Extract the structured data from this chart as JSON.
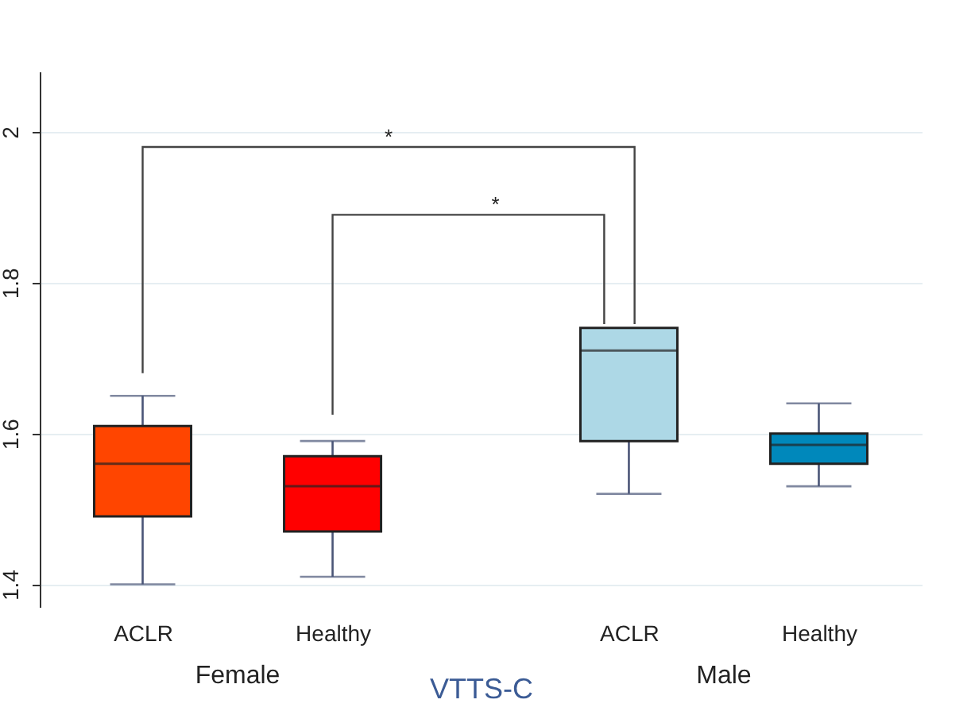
{
  "chart_data": {
    "type": "box",
    "xlabel": "VTTS-C",
    "categories": [
      "ACLR",
      "Healthy",
      "ACLR",
      "Healthy"
    ],
    "boxes": [
      {
        "low": 1.4,
        "q1": 1.49,
        "median": 1.56,
        "q3": 1.61,
        "high": 1.65
      },
      {
        "low": 1.41,
        "q1": 1.47,
        "median": 1.53,
        "q3": 1.57,
        "high": 1.59
      },
      {
        "low": 1.52,
        "q1": 1.59,
        "median": 1.71,
        "q3": 1.74,
        "high": 1.74
      },
      {
        "low": 1.53,
        "q1": 1.56,
        "median": 1.585,
        "q3": 1.6,
        "high": 1.64
      }
    ],
    "colors": [
      "#ff4500",
      "#ff0000",
      "#add8e6",
      "#0088bb"
    ],
    "ylim": [
      1.37,
      2.08
    ],
    "yticks": [
      1.4,
      1.6,
      1.8,
      {
        "value": 2,
        "label": "2"
      }
    ],
    "grid": "y",
    "legend": false,
    "annotations": [
      "*",
      "*",
      "Female",
      "Male"
    ]
  }
}
